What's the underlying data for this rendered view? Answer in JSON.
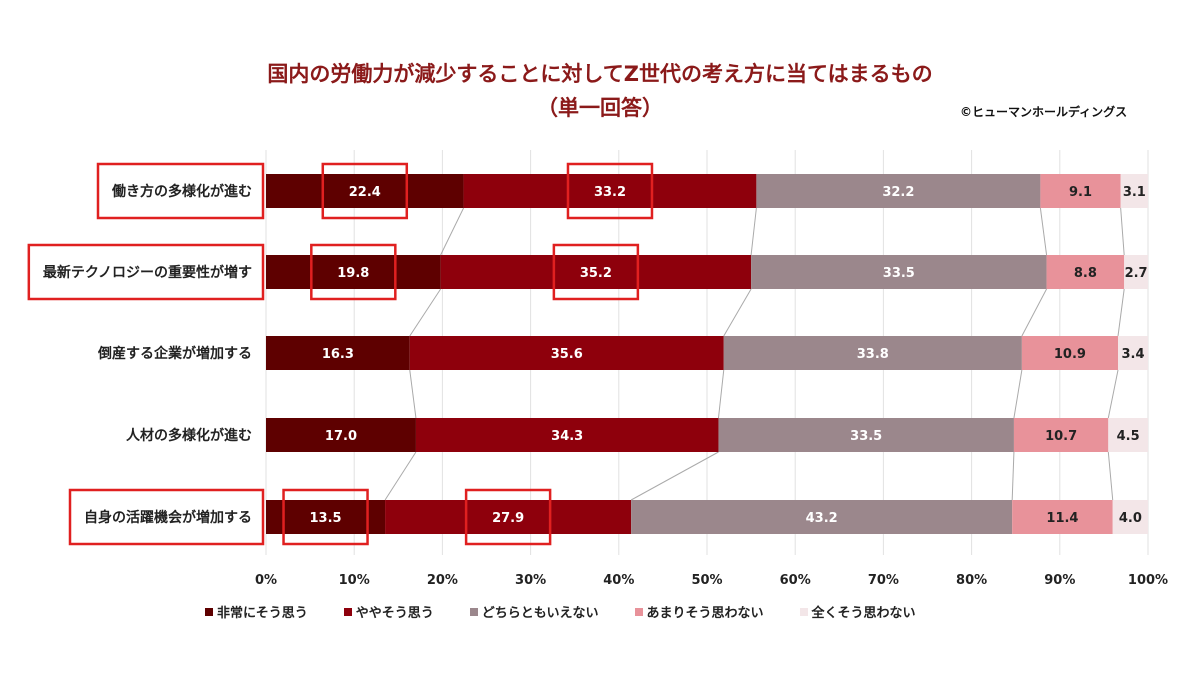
{
  "chart_data": {
    "type": "bar",
    "orientation": "horizontal-stacked-100",
    "title": "国内の労働力が減少することに対してZ世代の考え方に当てはまるもの",
    "subtitle": "（単一回答）",
    "credit": "©ヒューマンホールディングス",
    "categories": [
      "働き方の多様化が進む",
      "最新テクノロジーの重要性が増す",
      "倒産する企業が増加する",
      "人材の多様化が進む",
      "自身の活躍機会が増加する"
    ],
    "series": [
      {
        "name": "非常にそう思う",
        "color": "#5e0000",
        "values": [
          22.4,
          19.8,
          16.3,
          17.0,
          13.5
        ]
      },
      {
        "name": "ややそう思う",
        "color": "#8e000c",
        "values": [
          33.2,
          35.2,
          35.6,
          34.3,
          27.9
        ]
      },
      {
        "name": "どちらともいえない",
        "color": "#9b878c",
        "values": [
          32.2,
          33.5,
          33.8,
          33.5,
          43.2
        ]
      },
      {
        "name": "あまりそう思わない",
        "color": "#e8929a",
        "values": [
          9.1,
          8.8,
          10.9,
          10.7,
          11.4
        ]
      },
      {
        "name": "全くそう思わない",
        "color": "#f3e6e8",
        "values": [
          3.1,
          2.7,
          3.4,
          4.5,
          4.0
        ]
      }
    ],
    "xlim": [
      0,
      100
    ],
    "xticks": [
      "0%",
      "10%",
      "20%",
      "30%",
      "40%",
      "50%",
      "60%",
      "70%",
      "80%",
      "90%",
      "100%"
    ],
    "grid": true,
    "legend": "bottom",
    "highlighted_categories": [
      0,
      1,
      4
    ],
    "highlight_color": "#e02020"
  }
}
